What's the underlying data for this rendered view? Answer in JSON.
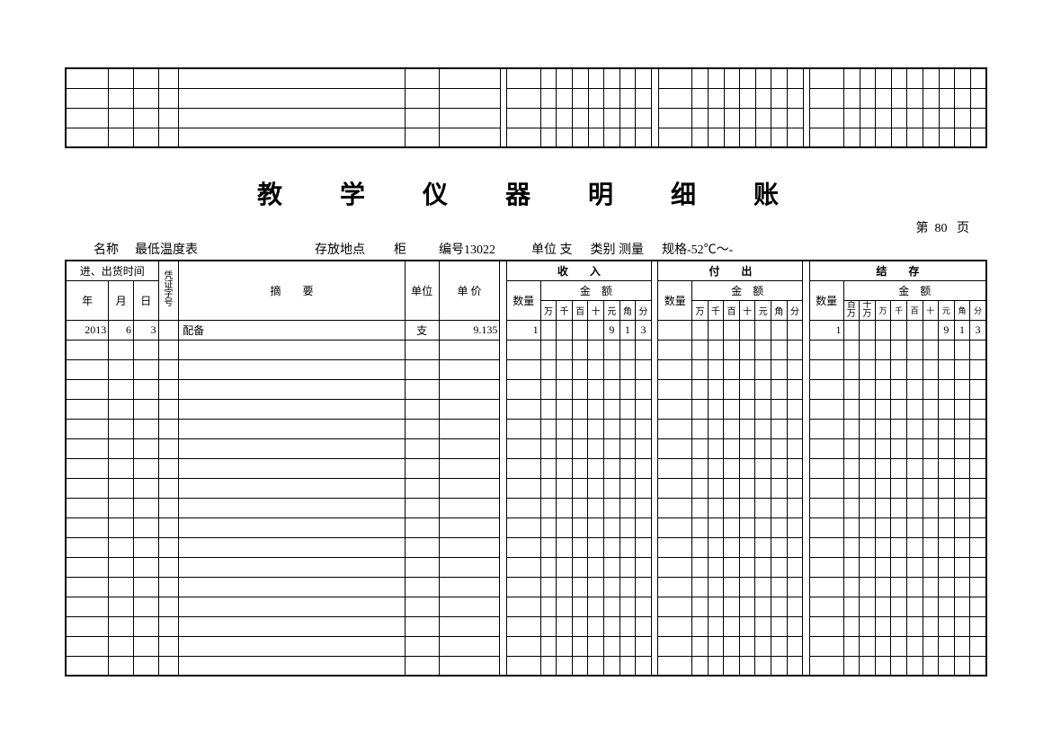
{
  "topStub": {
    "rows": 4
  },
  "title": "教　学　仪　器　明　细　账",
  "pageNumber": {
    "prefix": "第",
    "num": "80",
    "suffix": "页"
  },
  "meta": {
    "name_label": "名称",
    "name_value": "最低温度表",
    "loc_label": "存放地点",
    "loc_value": "柜",
    "code_label": "编号",
    "code_value": "13022",
    "unit_label": "单位",
    "unit_value": "支",
    "cat_label": "类别",
    "cat_value": "测量",
    "spec_label": "规格",
    "spec_value": "-52℃～-"
  },
  "headers": {
    "time": "进、出货时间",
    "year": "年",
    "month": "月",
    "day": "日",
    "voucher": "凭证字号",
    "summary": "摘　　要",
    "unit": "单位",
    "price": "单 价",
    "income": "收　　入",
    "outgo": "付　　出",
    "balance": "结　　存",
    "qty": "数量",
    "amount": "金　额",
    "digits7": [
      "万",
      "千",
      "百",
      "十",
      "元",
      "角",
      "分"
    ],
    "digits9": [
      "百万",
      "十万",
      "万",
      "千",
      "百",
      "十",
      "元",
      "角",
      "分"
    ]
  },
  "rows": [
    {
      "year": "2013",
      "month": "6",
      "day": "3",
      "voucher": "",
      "summary": "配备",
      "unit": "支",
      "price": "9.135",
      "in_qty": "1",
      "in_amount": [
        "",
        "",
        "",
        "",
        "9",
        "1",
        "3"
      ],
      "out_qty": "",
      "out_amount": [
        "",
        "",
        "",
        "",
        "",
        "",
        ""
      ],
      "bal_qty": "1",
      "bal_amount": [
        "",
        "",
        "",
        "",
        "",
        "",
        "9",
        "1",
        "3"
      ]
    }
  ],
  "blankRows": 17
}
